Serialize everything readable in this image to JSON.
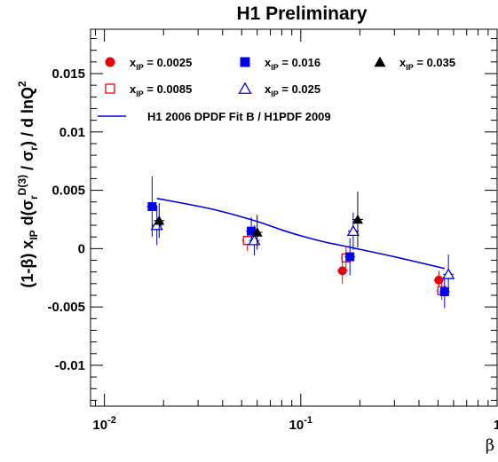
{
  "chart_data": {
    "type": "scatter",
    "title": "H1 Preliminary",
    "xlabel": "β",
    "ylabel": {
      "pre": "(1-β)  x",
      "pre_sub": "IP",
      "mid1": " d(σ",
      "mid1_sub": "r",
      "mid1_sup": "D(3)",
      "mid2": " / σ",
      "mid2_sub": "r",
      "post": ") / d lnQ",
      "post_sup": "2"
    },
    "x_scale": "log",
    "xlim": [
      0.0085,
      1.0
    ],
    "ylim": [
      -0.0135,
      0.0188
    ],
    "x_ticks": [
      {
        "value": 0.01,
        "base": "10",
        "exp": "-2"
      },
      {
        "value": 0.1,
        "base": "10",
        "exp": "-1"
      },
      {
        "value": 1.0,
        "base": "1",
        "exp": ""
      }
    ],
    "y_ticks": [
      {
        "value": -0.01,
        "label": "-0.01"
      },
      {
        "value": -0.005,
        "label": "-0.005"
      },
      {
        "value": 0,
        "label": "0"
      },
      {
        "value": 0.005,
        "label": "0.005"
      },
      {
        "value": 0.01,
        "label": "0.01"
      },
      {
        "value": 0.015,
        "label": "0.015"
      }
    ],
    "series": [
      {
        "label_prefix": "x",
        "label_sub": "IP",
        "label_suffix": " = 0.0025",
        "marker": "circle",
        "filled": true,
        "color": "#ee0000",
        "points": [
          {
            "x": 0.163,
            "y": -0.0019,
            "err": 0.0011
          },
          {
            "x": 0.505,
            "y": -0.0027,
            "err": 0.0008
          }
        ]
      },
      {
        "label_prefix": "x",
        "label_sub": "IP",
        "label_suffix": " = 0.0085",
        "marker": "square",
        "filled": false,
        "color": "#ee0000",
        "points": [
          {
            "x": 0.0535,
            "y": 0.0007,
            "err": 0.0009
          },
          {
            "x": 0.17,
            "y": -0.0008,
            "err": 0.001
          },
          {
            "x": 0.523,
            "y": -0.0036,
            "err": 0.0008
          }
        ]
      },
      {
        "label_prefix": "x",
        "label_sub": "IP",
        "label_suffix": " = 0.016",
        "marker": "square",
        "filled": true,
        "color": "#0000ee",
        "points": [
          {
            "x": 0.0175,
            "y": 0.0036,
            "err": 0.0026
          },
          {
            "x": 0.056,
            "y": 0.0015,
            "err": 0.0012
          },
          {
            "x": 0.178,
            "y": -0.0007,
            "err": 0.0016
          },
          {
            "x": 0.54,
            "y": -0.0037,
            "err": 0.0014
          }
        ]
      },
      {
        "label_prefix": "x",
        "label_sub": "IP",
        "label_suffix": " = 0.025",
        "marker": "triangle",
        "filled": false,
        "color": "#0000ee",
        "points": [
          {
            "x": 0.0185,
            "y": 0.002,
            "err": 0.0017
          },
          {
            "x": 0.058,
            "y": 0.0007,
            "err": 0.0013
          },
          {
            "x": 0.185,
            "y": 0.0015,
            "err": 0.0016
          },
          {
            "x": 0.565,
            "y": -0.0022,
            "err": 0.0017
          }
        ]
      },
      {
        "label_prefix": "x",
        "label_sub": "IP",
        "label_suffix": " = 0.035",
        "marker": "triangle",
        "filled": true,
        "color": "#000000",
        "points": [
          {
            "x": 0.019,
            "y": 0.0024,
            "err": 0.0015
          },
          {
            "x": 0.06,
            "y": 0.0014,
            "err": 0.0015
          },
          {
            "x": 0.195,
            "y": 0.0025,
            "err": 0.0024
          }
        ]
      }
    ],
    "fit_curve": {
      "label": "H1 2006 DPDF Fit B / H1PDF 2009",
      "color": "#0000dd",
      "x": [
        0.0185,
        0.035,
        0.058,
        0.08,
        0.1,
        0.13,
        0.18,
        0.3,
        0.54
      ],
      "y": [
        0.0043,
        0.0034,
        0.0024,
        0.0016,
        0.0011,
        0.0006,
        0.0001,
        -0.0007,
        -0.0017
      ]
    },
    "legend": {
      "placement": "top",
      "columns": [
        [
          "x_IP = 0.0025",
          "x_IP = 0.0085"
        ],
        [
          "x_IP = 0.016",
          "x_IP = 0.025"
        ],
        [
          "x_IP = 0.035"
        ]
      ]
    }
  }
}
